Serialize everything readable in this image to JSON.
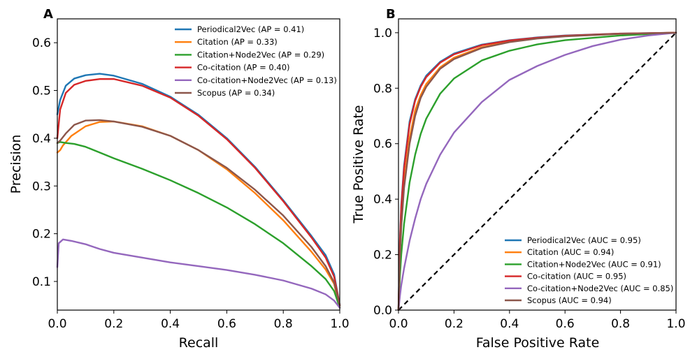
{
  "chart_data": [
    {
      "type": "line",
      "panel_label": "A",
      "title": "",
      "xlabel": "Recall",
      "ylabel": "Precision",
      "xlim": [
        0.0,
        1.0
      ],
      "ylim": [
        0.04,
        0.65
      ],
      "xticks": [
        0.0,
        0.2,
        0.4,
        0.6,
        0.8,
        1.0
      ],
      "xtick_labels": [
        "0.0",
        "0.2",
        "0.4",
        "0.6",
        "0.8",
        "1.0"
      ],
      "yticks": [
        0.1,
        0.2,
        0.3,
        0.4,
        0.5,
        0.6
      ],
      "ytick_labels": [
        "0.1",
        "0.2",
        "0.3",
        "0.4",
        "0.5",
        "0.6"
      ],
      "legend_position": "top-right",
      "grid": false,
      "series": [
        {
          "name": "Periodical2Vec",
          "legend_label": "Periodical2Vec (AP = 0.41)",
          "color": "#1f77b4",
          "points": [
            [
              0.0,
              0.45
            ],
            [
              0.01,
              0.48
            ],
            [
              0.03,
              0.51
            ],
            [
              0.06,
              0.525
            ],
            [
              0.1,
              0.532
            ],
            [
              0.15,
              0.535
            ],
            [
              0.2,
              0.531
            ],
            [
              0.3,
              0.514
            ],
            [
              0.4,
              0.487
            ],
            [
              0.5,
              0.449
            ],
            [
              0.6,
              0.4
            ],
            [
              0.7,
              0.34
            ],
            [
              0.8,
              0.27
            ],
            [
              0.9,
              0.195
            ],
            [
              0.95,
              0.155
            ],
            [
              0.98,
              0.115
            ],
            [
              1.0,
              0.05
            ]
          ]
        },
        {
          "name": "Citation",
          "legend_label": "Citation (AP = 0.33)",
          "color": "#ff7f0e",
          "points": [
            [
              0.0,
              0.37
            ],
            [
              0.01,
              0.375
            ],
            [
              0.02,
              0.385
            ],
            [
              0.05,
              0.405
            ],
            [
              0.1,
              0.425
            ],
            [
              0.15,
              0.434
            ],
            [
              0.2,
              0.435
            ],
            [
              0.3,
              0.425
            ],
            [
              0.4,
              0.405
            ],
            [
              0.5,
              0.375
            ],
            [
              0.6,
              0.335
            ],
            [
              0.7,
              0.285
            ],
            [
              0.8,
              0.228
            ],
            [
              0.9,
              0.162
            ],
            [
              0.95,
              0.125
            ],
            [
              0.98,
              0.095
            ],
            [
              1.0,
              0.045
            ]
          ]
        },
        {
          "name": "Citation+Node2Vec",
          "legend_label": "Citation+Node2Vec (AP = 0.29)",
          "color": "#2ca02c",
          "points": [
            [
              0.0,
              0.39
            ],
            [
              0.01,
              0.392
            ],
            [
              0.03,
              0.39
            ],
            [
              0.06,
              0.388
            ],
            [
              0.1,
              0.382
            ],
            [
              0.15,
              0.37
            ],
            [
              0.2,
              0.358
            ],
            [
              0.3,
              0.336
            ],
            [
              0.4,
              0.312
            ],
            [
              0.5,
              0.285
            ],
            [
              0.6,
              0.255
            ],
            [
              0.7,
              0.22
            ],
            [
              0.8,
              0.18
            ],
            [
              0.9,
              0.132
            ],
            [
              0.95,
              0.105
            ],
            [
              0.98,
              0.08
            ],
            [
              1.0,
              0.045
            ]
          ]
        },
        {
          "name": "Co-citation",
          "legend_label": "Co-citation (AP = 0.40)",
          "color": "#d62728",
          "points": [
            [
              0.0,
              0.4
            ],
            [
              0.01,
              0.46
            ],
            [
              0.03,
              0.495
            ],
            [
              0.06,
              0.512
            ],
            [
              0.1,
              0.52
            ],
            [
              0.15,
              0.524
            ],
            [
              0.2,
              0.524
            ],
            [
              0.3,
              0.51
            ],
            [
              0.4,
              0.485
            ],
            [
              0.5,
              0.447
            ],
            [
              0.6,
              0.398
            ],
            [
              0.7,
              0.338
            ],
            [
              0.8,
              0.268
            ],
            [
              0.9,
              0.192
            ],
            [
              0.95,
              0.15
            ],
            [
              0.98,
              0.11
            ],
            [
              1.0,
              0.05
            ]
          ]
        },
        {
          "name": "Co-citation+Node2Vec",
          "legend_label": "Co-citation+Node2Vec (AP = 0.13)",
          "color": "#9467bd",
          "points": [
            [
              0.0,
              0.13
            ],
            [
              0.005,
              0.18
            ],
            [
              0.02,
              0.188
            ],
            [
              0.05,
              0.185
            ],
            [
              0.1,
              0.178
            ],
            [
              0.15,
              0.168
            ],
            [
              0.2,
              0.16
            ],
            [
              0.3,
              0.15
            ],
            [
              0.4,
              0.14
            ],
            [
              0.5,
              0.132
            ],
            [
              0.6,
              0.124
            ],
            [
              0.7,
              0.114
            ],
            [
              0.8,
              0.102
            ],
            [
              0.9,
              0.085
            ],
            [
              0.95,
              0.073
            ],
            [
              0.98,
              0.06
            ],
            [
              1.0,
              0.045
            ]
          ]
        },
        {
          "name": "Scopus",
          "legend_label": "Scopus (AP = 0.34)",
          "color": "#8c564b",
          "points": [
            [
              0.0,
              0.39
            ],
            [
              0.01,
              0.395
            ],
            [
              0.03,
              0.41
            ],
            [
              0.06,
              0.428
            ],
            [
              0.1,
              0.437
            ],
            [
              0.15,
              0.438
            ],
            [
              0.2,
              0.435
            ],
            [
              0.3,
              0.424
            ],
            [
              0.4,
              0.405
            ],
            [
              0.5,
              0.375
            ],
            [
              0.6,
              0.338
            ],
            [
              0.7,
              0.292
            ],
            [
              0.8,
              0.238
            ],
            [
              0.9,
              0.172
            ],
            [
              0.95,
              0.132
            ],
            [
              0.98,
              0.098
            ],
            [
              1.0,
              0.05
            ]
          ]
        }
      ]
    },
    {
      "type": "line",
      "panel_label": "B",
      "title": "",
      "xlabel": "False Positive Rate",
      "ylabel": "True Positive Rate",
      "xlim": [
        0.0,
        1.0
      ],
      "ylim": [
        0.0,
        1.05
      ],
      "xticks": [
        0.0,
        0.2,
        0.4,
        0.6,
        0.8,
        1.0
      ],
      "xtick_labels": [
        "0.0",
        "0.2",
        "0.4",
        "0.6",
        "0.8",
        "1.0"
      ],
      "yticks": [
        0.0,
        0.2,
        0.4,
        0.6,
        0.8,
        1.0
      ],
      "ytick_labels": [
        "0.0",
        "0.2",
        "0.4",
        "0.6",
        "0.8",
        "1.0"
      ],
      "legend_position": "lower-right",
      "grid": false,
      "diagonal": {
        "points": [
          [
            0.0,
            0.0
          ],
          [
            1.0,
            1.0
          ]
        ],
        "style": "dashed",
        "color": "#000000"
      },
      "series": [
        {
          "name": "Periodical2Vec",
          "legend_label": "Periodical2Vec (AUC = 0.95)",
          "color": "#1f77b4",
          "points": [
            [
              0.0,
              0.0
            ],
            [
              0.005,
              0.25
            ],
            [
              0.01,
              0.38
            ],
            [
              0.02,
              0.52
            ],
            [
              0.04,
              0.68
            ],
            [
              0.06,
              0.76
            ],
            [
              0.08,
              0.81
            ],
            [
              0.1,
              0.845
            ],
            [
              0.15,
              0.895
            ],
            [
              0.2,
              0.925
            ],
            [
              0.3,
              0.957
            ],
            [
              0.4,
              0.973
            ],
            [
              0.5,
              0.983
            ],
            [
              0.6,
              0.99
            ],
            [
              0.8,
              0.997
            ],
            [
              1.0,
              1.0
            ]
          ]
        },
        {
          "name": "Citation",
          "legend_label": "Citation (AUC = 0.94)",
          "color": "#ff7f0e",
          "points": [
            [
              0.0,
              0.0
            ],
            [
              0.005,
              0.2
            ],
            [
              0.01,
              0.32
            ],
            [
              0.02,
              0.46
            ],
            [
              0.04,
              0.62
            ],
            [
              0.06,
              0.72
            ],
            [
              0.08,
              0.775
            ],
            [
              0.1,
              0.815
            ],
            [
              0.15,
              0.875
            ],
            [
              0.2,
              0.91
            ],
            [
              0.3,
              0.948
            ],
            [
              0.4,
              0.968
            ],
            [
              0.5,
              0.98
            ],
            [
              0.6,
              0.988
            ],
            [
              0.8,
              0.996
            ],
            [
              1.0,
              1.0
            ]
          ]
        },
        {
          "name": "Citation+Node2Vec",
          "legend_label": "Citation+Node2Vec (AUC = 0.91)",
          "color": "#2ca02c",
          "points": [
            [
              0.0,
              0.0
            ],
            [
              0.005,
              0.12
            ],
            [
              0.01,
              0.2
            ],
            [
              0.02,
              0.31
            ],
            [
              0.04,
              0.46
            ],
            [
              0.06,
              0.56
            ],
            [
              0.08,
              0.635
            ],
            [
              0.1,
              0.69
            ],
            [
              0.15,
              0.78
            ],
            [
              0.2,
              0.835
            ],
            [
              0.3,
              0.9
            ],
            [
              0.4,
              0.935
            ],
            [
              0.5,
              0.958
            ],
            [
              0.6,
              0.973
            ],
            [
              0.8,
              0.99
            ],
            [
              1.0,
              1.0
            ]
          ]
        },
        {
          "name": "Co-citation",
          "legend_label": "Co-citation (AUC = 0.95)",
          "color": "#d62728",
          "points": [
            [
              0.0,
              0.0
            ],
            [
              0.005,
              0.24
            ],
            [
              0.01,
              0.37
            ],
            [
              0.02,
              0.51
            ],
            [
              0.04,
              0.67
            ],
            [
              0.06,
              0.755
            ],
            [
              0.08,
              0.805
            ],
            [
              0.1,
              0.84
            ],
            [
              0.15,
              0.892
            ],
            [
              0.2,
              0.922
            ],
            [
              0.3,
              0.955
            ],
            [
              0.4,
              0.972
            ],
            [
              0.5,
              0.982
            ],
            [
              0.6,
              0.989
            ],
            [
              0.8,
              0.997
            ],
            [
              1.0,
              1.0
            ]
          ]
        },
        {
          "name": "Co-citation+Node2Vec",
          "legend_label": "Co-citation+Node2Vec (AUC = 0.85)",
          "color": "#9467bd",
          "points": [
            [
              0.0,
              0.0
            ],
            [
              0.005,
              0.05
            ],
            [
              0.01,
              0.09
            ],
            [
              0.02,
              0.15
            ],
            [
              0.04,
              0.25
            ],
            [
              0.06,
              0.33
            ],
            [
              0.08,
              0.4
            ],
            [
              0.1,
              0.455
            ],
            [
              0.15,
              0.56
            ],
            [
              0.2,
              0.64
            ],
            [
              0.3,
              0.75
            ],
            [
              0.4,
              0.83
            ],
            [
              0.5,
              0.88
            ],
            [
              0.6,
              0.92
            ],
            [
              0.7,
              0.952
            ],
            [
              0.8,
              0.975
            ],
            [
              0.9,
              0.99
            ],
            [
              1.0,
              1.0
            ]
          ]
        },
        {
          "name": "Scopus",
          "legend_label": "Scopus (AUC = 0.94)",
          "color": "#8c564b",
          "points": [
            [
              0.0,
              0.0
            ],
            [
              0.005,
              0.19
            ],
            [
              0.01,
              0.3
            ],
            [
              0.02,
              0.44
            ],
            [
              0.04,
              0.6
            ],
            [
              0.06,
              0.7
            ],
            [
              0.08,
              0.765
            ],
            [
              0.1,
              0.805
            ],
            [
              0.15,
              0.87
            ],
            [
              0.2,
              0.905
            ],
            [
              0.3,
              0.945
            ],
            [
              0.4,
              0.966
            ],
            [
              0.5,
              0.979
            ],
            [
              0.6,
              0.987
            ],
            [
              0.8,
              0.996
            ],
            [
              1.0,
              1.0
            ]
          ]
        }
      ]
    }
  ]
}
